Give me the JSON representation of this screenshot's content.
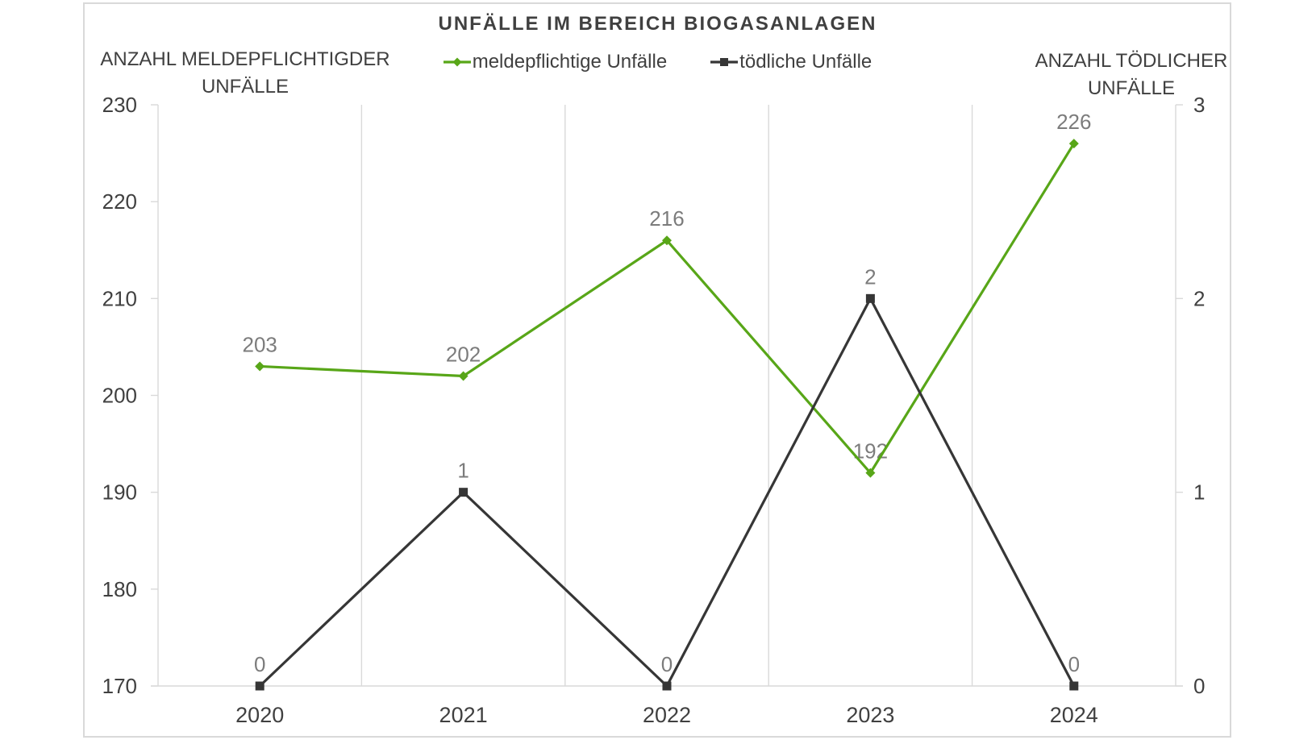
{
  "page": {
    "background": "#FFFFFF",
    "card_border": "#D9D9D9"
  },
  "chart_data": {
    "type": "line",
    "title": "UNFÄLLE IM BEREICH BIOGASANLAGEN",
    "categories": [
      "2020",
      "2021",
      "2022",
      "2023",
      "2024"
    ],
    "series": [
      {
        "name": "meldepflichtige Unfälle",
        "axis": "left",
        "color": "#58A618",
        "marker": "diamond",
        "values": [
          203,
          202,
          216,
          192,
          226
        ]
      },
      {
        "name": "tödliche Unfälle",
        "axis": "right",
        "color": "#363636",
        "marker": "square",
        "values": [
          0,
          1,
          0,
          2,
          0
        ]
      }
    ],
    "left_axis": {
      "title_lines": [
        "ANZAHL MELDEPFLICHTIGDER",
        "UNFÄLLE"
      ],
      "min": 170,
      "max": 230,
      "ticks": [
        230,
        220,
        210,
        200,
        190,
        180,
        170
      ]
    },
    "right_axis": {
      "title_lines": [
        "ANZAHL TÖDLICHER",
        "UNFÄLLE"
      ],
      "min": 0,
      "max": 3,
      "ticks": [
        3,
        2,
        1,
        0
      ]
    },
    "grid": "vertical-only",
    "legend_position": "top",
    "data_labels": "above-points",
    "colors": {
      "grid": "#D9D9D9",
      "axis_line": "#D9D9D9",
      "tick_label": "#404040",
      "x_label": "#404040",
      "data_label": "#7C7C7C",
      "title": "#404040",
      "legend_label": "#404040",
      "axis_title": "#404040"
    }
  }
}
